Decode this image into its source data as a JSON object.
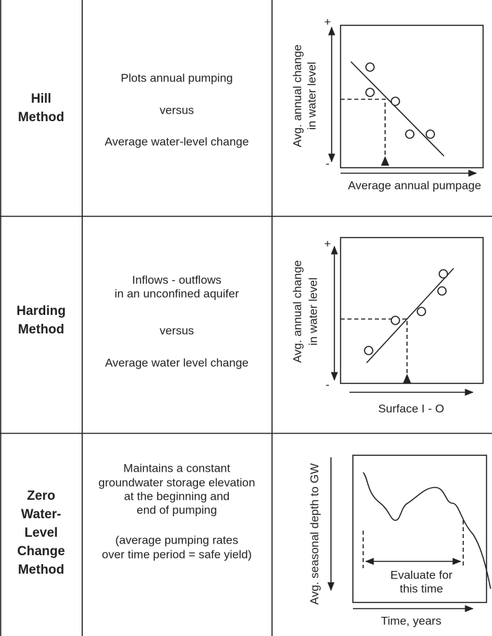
{
  "rows": [
    {
      "method": [
        "Hill",
        "Method"
      ],
      "description": [
        "Plots annual pumping",
        "versus",
        "Average water-level change"
      ],
      "plot": {
        "y_label": [
          "Avg. annual change",
          "in water level"
        ],
        "x_label": "Average annual pumpage",
        "plus": "+",
        "minus": "-"
      }
    },
    {
      "method": [
        "Harding",
        "Method"
      ],
      "description": [
        "Inflows - outflows",
        "in an unconfined aquifer",
        "versus",
        "Average water level change"
      ],
      "plot": {
        "y_label": [
          "Avg. annual change",
          "in water level"
        ],
        "x_label": "Surface I - O",
        "plus": "+",
        "minus": "-"
      }
    },
    {
      "method": [
        "Zero",
        "Water-",
        "Level",
        "Change",
        "Method"
      ],
      "description": [
        "Maintains a constant",
        "groundwater storage elevation",
        "at the beginning and",
        "end of pumping",
        "(average pumping rates",
        "over time period = safe yield)"
      ],
      "plot": {
        "y_label": [
          "Avg. seasonal depth to GW"
        ],
        "x_label": "Time, years",
        "annotation": [
          "Evaluate for",
          "this time"
        ]
      }
    }
  ]
}
